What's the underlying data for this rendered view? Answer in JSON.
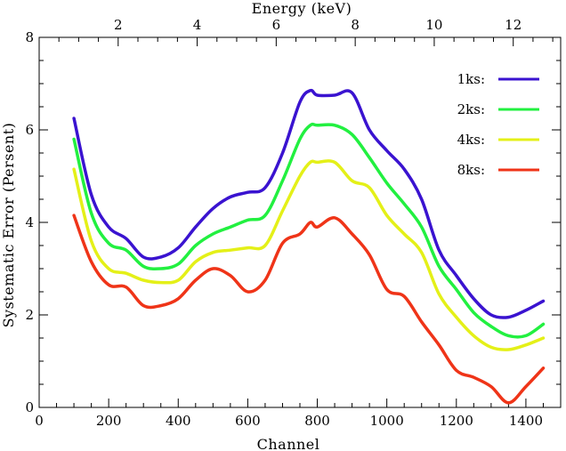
{
  "chart_data": {
    "type": "line",
    "title": "",
    "xlabel": "Channel",
    "ylabel": "Systematic Error (Persent)",
    "top_xlabel": "Energy (keV)",
    "xlim": [
      0,
      1500
    ],
    "ylim": [
      0,
      8
    ],
    "top_xlim_keV": [
      0.0,
      13.2
    ],
    "x_ticks": [
      0,
      200,
      400,
      600,
      800,
      1000,
      1200,
      1400
    ],
    "y_ticks": [
      0,
      2,
      4,
      6,
      8
    ],
    "top_ticks_keV": [
      2,
      4,
      6,
      8,
      10,
      12
    ],
    "grid": false,
    "legend_position": "top-right",
    "x": [
      100,
      150,
      200,
      250,
      300,
      350,
      400,
      450,
      500,
      550,
      600,
      650,
      700,
      750,
      780,
      800,
      850,
      900,
      950,
      1000,
      1050,
      1100,
      1150,
      1200,
      1250,
      1300,
      1350,
      1400,
      1450
    ],
    "series": [
      {
        "name": "1ks:",
        "color": "#3a13d0",
        "values": [
          6.25,
          4.6,
          3.9,
          3.65,
          3.25,
          3.25,
          3.45,
          3.9,
          4.3,
          4.55,
          4.65,
          4.75,
          5.5,
          6.6,
          6.85,
          6.75,
          6.75,
          6.8,
          6.0,
          5.55,
          5.15,
          4.5,
          3.4,
          2.85,
          2.35,
          2.0,
          1.95,
          2.1,
          2.3
        ]
      },
      {
        "name": "2ks:",
        "color": "#22f040",
        "values": [
          5.8,
          4.2,
          3.55,
          3.4,
          3.05,
          3.0,
          3.1,
          3.5,
          3.75,
          3.9,
          4.05,
          4.15,
          4.9,
          5.8,
          6.1,
          6.1,
          6.1,
          5.9,
          5.4,
          4.85,
          4.4,
          3.9,
          3.05,
          2.55,
          2.05,
          1.75,
          1.55,
          1.55,
          1.8
        ]
      },
      {
        "name": "4ks:",
        "color": "#e4f018",
        "values": [
          5.15,
          3.6,
          3.0,
          2.9,
          2.75,
          2.7,
          2.75,
          3.15,
          3.35,
          3.4,
          3.45,
          3.5,
          4.25,
          5.0,
          5.3,
          5.3,
          5.3,
          4.9,
          4.75,
          4.15,
          3.75,
          3.35,
          2.45,
          1.95,
          1.55,
          1.3,
          1.25,
          1.35,
          1.5
        ]
      },
      {
        "name": "8ks:",
        "color": "#ef3418",
        "values": [
          4.15,
          3.15,
          2.65,
          2.6,
          2.2,
          2.2,
          2.35,
          2.75,
          3.0,
          2.85,
          2.5,
          2.75,
          3.55,
          3.75,
          4.0,
          3.9,
          4.1,
          3.75,
          3.3,
          2.55,
          2.4,
          1.85,
          1.35,
          0.8,
          0.65,
          0.45,
          0.1,
          0.45,
          0.85
        ]
      }
    ]
  }
}
